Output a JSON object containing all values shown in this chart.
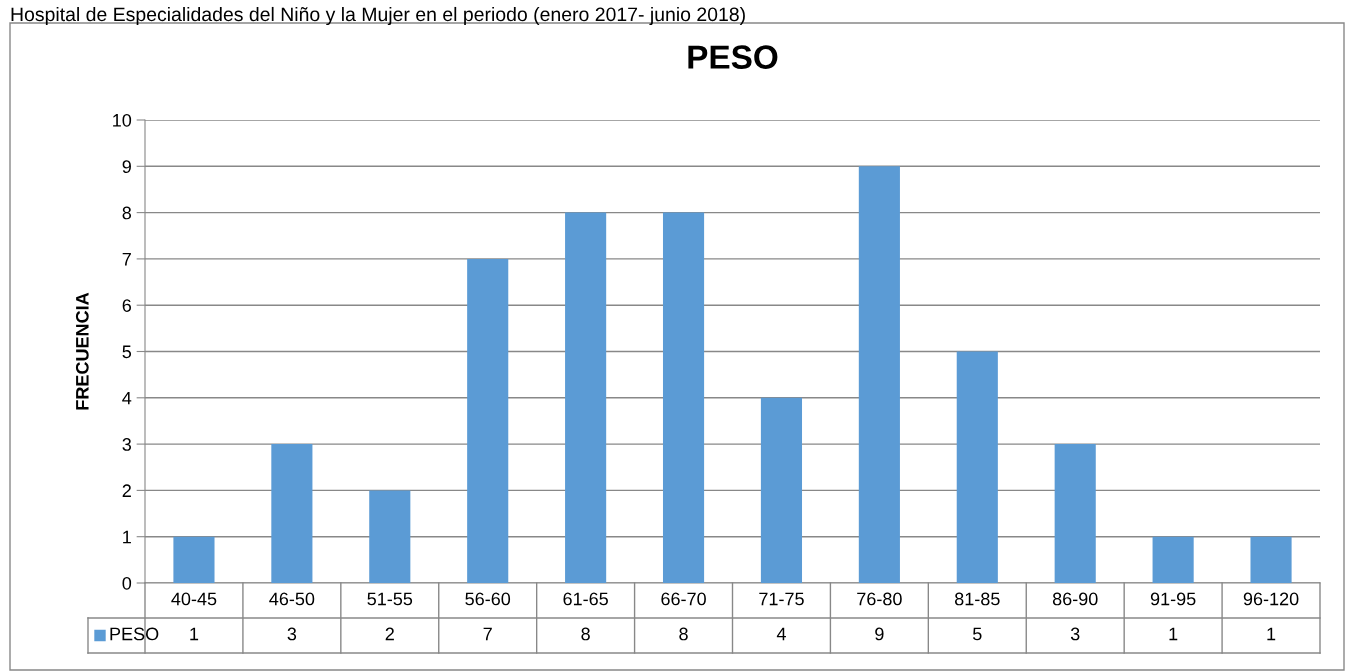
{
  "chart_data": {
    "type": "bar",
    "title": "PESO",
    "ylabel": "FRECUENCIA",
    "annotations": [
      "Hospital de Especialidades del Niño y la Mujer en el periodo (enero 2017- junio 2018)"
    ],
    "categories": [
      "40-45",
      "46-50",
      "51-55",
      "56-60",
      "61-65",
      "66-70",
      "71-75",
      "76-80",
      "81-85",
      "86-90",
      "91-95",
      "96-120"
    ],
    "series": [
      {
        "name": "PESO",
        "color": "#5b9bd5",
        "values": [
          1,
          3,
          2,
          7,
          8,
          8,
          4,
          9,
          5,
          3,
          1,
          1
        ]
      }
    ],
    "ylim": [
      0,
      10
    ],
    "yticks": [
      0,
      1,
      2,
      3,
      4,
      5,
      6,
      7,
      8,
      9,
      10
    ],
    "grid": "y",
    "legend": "bottom",
    "data_labels": true
  }
}
